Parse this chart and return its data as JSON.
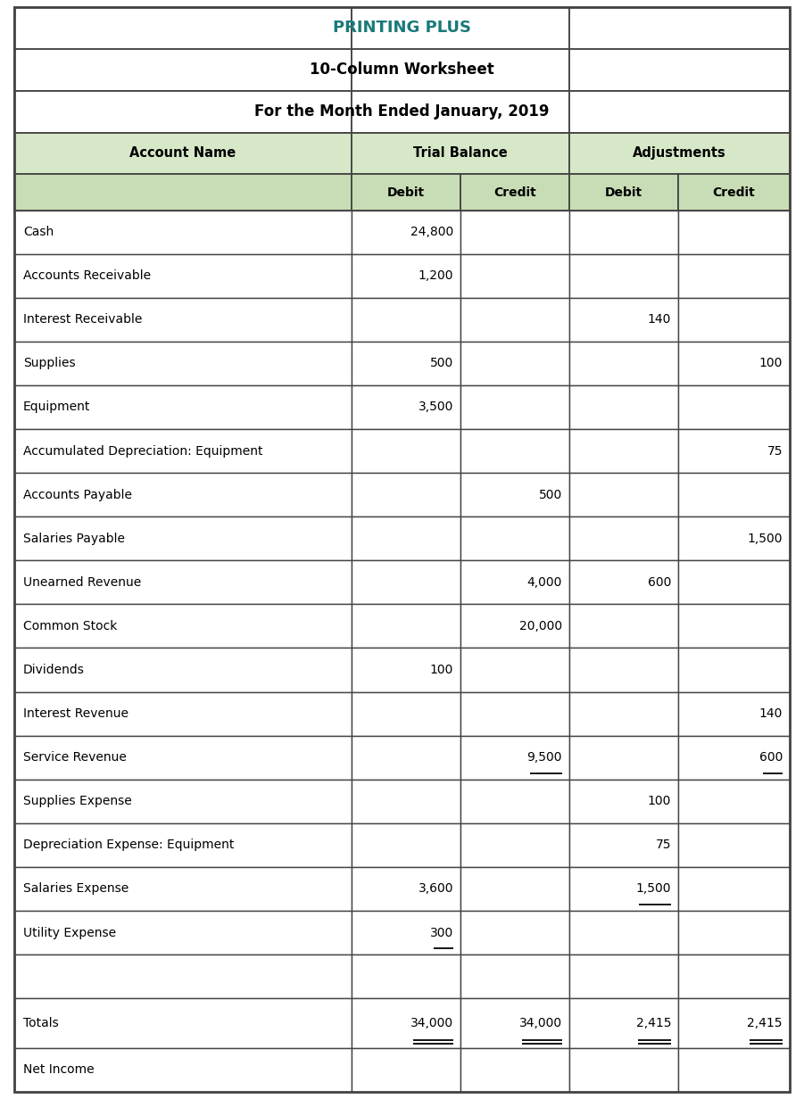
{
  "title1": "PRINTING PLUS",
  "title2": "10-Column Worksheet",
  "title3": "For the Month Ended January, 2019",
  "title1_color": "#1a7a7a",
  "header_bg": "#d6e8c8",
  "col_header_bg": "#c8ddb5",
  "border_color": "#444444",
  "rows": [
    {
      "name": "Cash",
      "tb_d": "24,800",
      "tb_c": "",
      "adj_d": "",
      "adj_c": "",
      "tb_d_ul": false,
      "tb_c_ul": false,
      "adj_d_ul": false,
      "adj_c_ul": false
    },
    {
      "name": "Accounts Receivable",
      "tb_d": "1,200",
      "tb_c": "",
      "adj_d": "",
      "adj_c": "",
      "tb_d_ul": false,
      "tb_c_ul": false,
      "adj_d_ul": false,
      "adj_c_ul": false
    },
    {
      "name": "Interest Receivable",
      "tb_d": "",
      "tb_c": "",
      "adj_d": "140",
      "adj_c": "",
      "tb_d_ul": false,
      "tb_c_ul": false,
      "adj_d_ul": false,
      "adj_c_ul": false
    },
    {
      "name": "Supplies",
      "tb_d": "500",
      "tb_c": "",
      "adj_d": "",
      "adj_c": "100",
      "tb_d_ul": false,
      "tb_c_ul": false,
      "adj_d_ul": false,
      "adj_c_ul": false
    },
    {
      "name": "Equipment",
      "tb_d": "3,500",
      "tb_c": "",
      "adj_d": "",
      "adj_c": "",
      "tb_d_ul": false,
      "tb_c_ul": false,
      "adj_d_ul": false,
      "adj_c_ul": false
    },
    {
      "name": "Accumulated Depreciation: Equipment",
      "tb_d": "",
      "tb_c": "",
      "adj_d": "",
      "adj_c": "75",
      "tb_d_ul": false,
      "tb_c_ul": false,
      "adj_d_ul": false,
      "adj_c_ul": false
    },
    {
      "name": "Accounts Payable",
      "tb_d": "",
      "tb_c": "500",
      "adj_d": "",
      "adj_c": "",
      "tb_d_ul": false,
      "tb_c_ul": false,
      "adj_d_ul": false,
      "adj_c_ul": false
    },
    {
      "name": "Salaries Payable",
      "tb_d": "",
      "tb_c": "",
      "adj_d": "",
      "adj_c": "1,500",
      "tb_d_ul": false,
      "tb_c_ul": false,
      "adj_d_ul": false,
      "adj_c_ul": false
    },
    {
      "name": "Unearned Revenue",
      "tb_d": "",
      "tb_c": "4,000",
      "adj_d": "600",
      "adj_c": "",
      "tb_d_ul": false,
      "tb_c_ul": false,
      "adj_d_ul": false,
      "adj_c_ul": false
    },
    {
      "name": "Common Stock",
      "tb_d": "",
      "tb_c": "20,000",
      "adj_d": "",
      "adj_c": "",
      "tb_d_ul": false,
      "tb_c_ul": false,
      "adj_d_ul": false,
      "adj_c_ul": false
    },
    {
      "name": "Dividends",
      "tb_d": "100",
      "tb_c": "",
      "adj_d": "",
      "adj_c": "",
      "tb_d_ul": false,
      "tb_c_ul": false,
      "adj_d_ul": false,
      "adj_c_ul": false
    },
    {
      "name": "Interest Revenue",
      "tb_d": "",
      "tb_c": "",
      "adj_d": "",
      "adj_c": "140",
      "tb_d_ul": false,
      "tb_c_ul": false,
      "adj_d_ul": false,
      "adj_c_ul": false
    },
    {
      "name": "Service Revenue",
      "tb_d": "",
      "tb_c": "9,500",
      "adj_d": "",
      "adj_c": "600",
      "tb_d_ul": false,
      "tb_c_ul": true,
      "adj_d_ul": false,
      "adj_c_ul": true
    },
    {
      "name": "Supplies Expense",
      "tb_d": "",
      "tb_c": "",
      "adj_d": "100",
      "adj_c": "",
      "tb_d_ul": false,
      "tb_c_ul": false,
      "adj_d_ul": false,
      "adj_c_ul": false
    },
    {
      "name": "Depreciation Expense: Equipment",
      "tb_d": "",
      "tb_c": "",
      "adj_d": "75",
      "adj_c": "",
      "tb_d_ul": false,
      "tb_c_ul": false,
      "adj_d_ul": false,
      "adj_c_ul": false
    },
    {
      "name": "Salaries Expense",
      "tb_d": "3,600",
      "tb_c": "",
      "adj_d": "1,500",
      "adj_c": "",
      "tb_d_ul": false,
      "tb_c_ul": false,
      "adj_d_ul": true,
      "adj_c_ul": false
    },
    {
      "name": "Utility Expense",
      "tb_d": "300",
      "tb_c": "",
      "adj_d": "",
      "adj_c": "",
      "tb_d_ul": true,
      "tb_c_ul": false,
      "adj_d_ul": false,
      "adj_c_ul": false
    },
    {
      "name": "",
      "tb_d": "",
      "tb_c": "",
      "adj_d": "",
      "adj_c": "",
      "tb_d_ul": false,
      "tb_c_ul": false,
      "adj_d_ul": false,
      "adj_c_ul": false
    }
  ],
  "totals": {
    "name": "Totals",
    "tb_d": "34,000",
    "tb_c": "34,000",
    "adj_d": "2,415",
    "adj_c": "2,415"
  },
  "net_income": {
    "name": "Net Income"
  }
}
